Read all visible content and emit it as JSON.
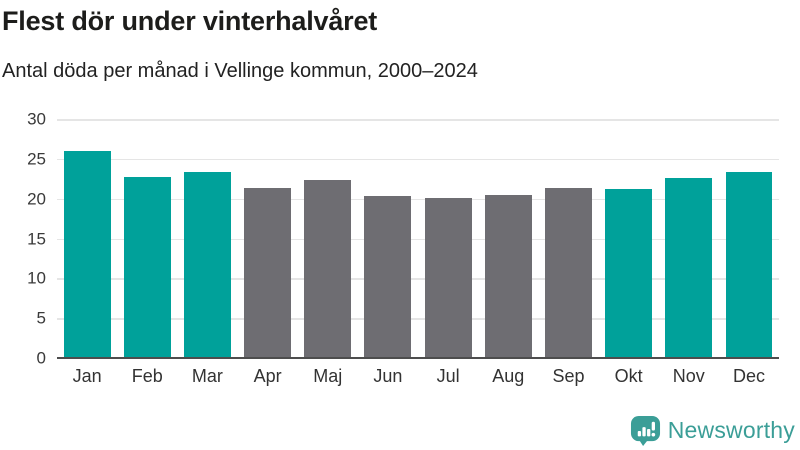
{
  "title": "Flest dör under vinterhalvåret",
  "subtitle": "Antal döda per månad i Vellinge kommun, 2000–2024",
  "chart_data": {
    "type": "bar",
    "title": "Flest dör under vinterhalvåret",
    "subtitle": "Antal döda per månad i Vellinge kommun, 2000–2024",
    "categories": [
      "Jan",
      "Feb",
      "Mar",
      "Apr",
      "Maj",
      "Jun",
      "Jul",
      "Aug",
      "Sep",
      "Okt",
      "Nov",
      "Dec"
    ],
    "values": [
      26.0,
      22.7,
      23.3,
      21.3,
      22.3,
      20.3,
      20.1,
      20.5,
      21.4,
      21.2,
      22.6,
      23.3
    ],
    "highlighted": [
      true,
      true,
      true,
      false,
      false,
      false,
      false,
      false,
      false,
      true,
      true,
      true
    ],
    "xlabel": "",
    "ylabel": "",
    "ylim": [
      0,
      30
    ],
    "yticks": [
      0,
      5,
      10,
      15,
      20,
      25,
      30
    ],
    "grid": true,
    "legend": "none",
    "colors": {
      "highlight": "#00A19A",
      "normal": "#6E6D72",
      "gridline": "#E5E5E5",
      "axis_line": "#4D4D4D"
    }
  },
  "branding": {
    "logo_text": "Newsworthy",
    "logo_color": "#3B9E97",
    "logo_icon": "bar-chart-speech-bubble-icon"
  }
}
